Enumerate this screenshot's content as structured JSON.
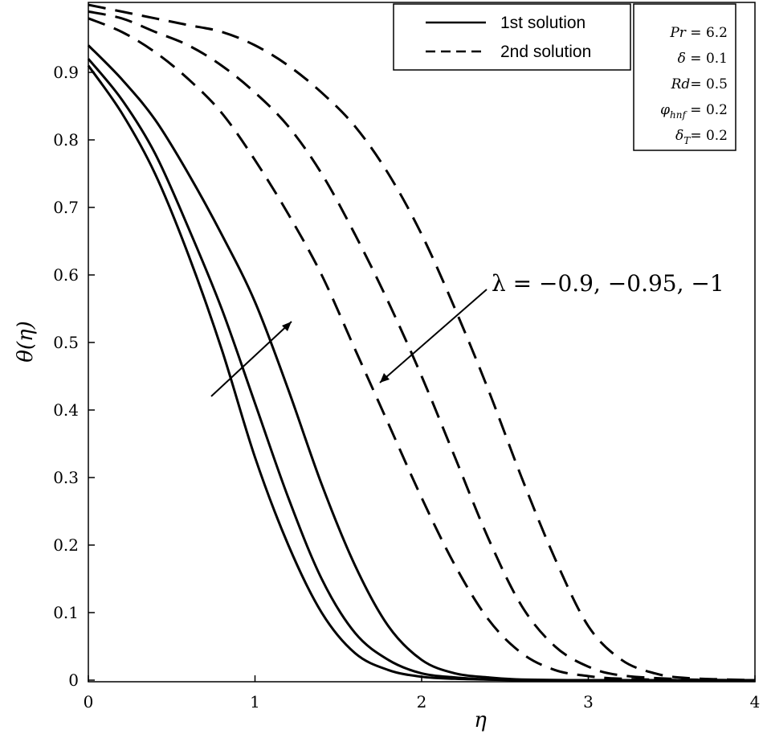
{
  "chart_data": {
    "type": "line",
    "xlabel": "η",
    "ylabel": "θ(η)",
    "xlim": [
      0,
      4
    ],
    "ylim": [
      0,
      1
    ],
    "x_ticks": [
      0,
      1,
      2,
      3,
      4
    ],
    "x_tick_labels": [
      "0",
      "1",
      "2",
      "3",
      "4"
    ],
    "y_ticks": [
      0,
      0.1,
      0.2,
      0.3,
      0.4,
      0.5,
      0.6,
      0.7,
      0.8,
      0.9
    ],
    "y_tick_labels": [
      "0",
      "0.1",
      "0.2",
      "0.3",
      "0.4",
      "0.5",
      "0.6",
      "0.7",
      "0.8",
      "0.9"
    ],
    "legend": [
      {
        "label": "1st solution",
        "style": "solid"
      },
      {
        "label": "2nd solution",
        "style": "dashed"
      }
    ],
    "parameters": [
      {
        "symbol": "Pr",
        "sep": " = ",
        "value": "6.2"
      },
      {
        "symbol": "δ",
        "sep": " = ",
        "value": "0.1"
      },
      {
        "symbol": "Rd",
        "sep": "= ",
        "value": "0.5"
      },
      {
        "symbol": "φ",
        "sub": "hnf",
        "sep": " = ",
        "value": "0.2"
      },
      {
        "symbol": "δ",
        "sub": "T",
        "sep": "= ",
        "value": "0.2"
      }
    ],
    "annotation": "λ = −0.9, −0.95, −1",
    "series": [
      {
        "name": "1st solution, λ = −0.9",
        "style": "solid",
        "x": [
          0,
          0.2,
          0.4,
          0.6,
          0.8,
          1.0,
          1.2,
          1.4,
          1.6,
          1.8,
          2.0,
          2.2,
          2.4,
          2.6,
          3.0,
          4.0
        ],
        "y": [
          0.91,
          0.84,
          0.75,
          0.63,
          0.49,
          0.33,
          0.2,
          0.1,
          0.04,
          0.015,
          0.005,
          0.002,
          0.001,
          0,
          0,
          0
        ]
      },
      {
        "name": "1st solution, λ = −0.95",
        "style": "solid",
        "x": [
          0,
          0.2,
          0.4,
          0.6,
          0.8,
          1.0,
          1.2,
          1.4,
          1.6,
          1.8,
          2.0,
          2.2,
          2.4,
          2.6,
          3.0,
          4.0
        ],
        "y": [
          0.92,
          0.86,
          0.78,
          0.67,
          0.55,
          0.41,
          0.27,
          0.15,
          0.07,
          0.03,
          0.01,
          0.004,
          0.001,
          0,
          0,
          0
        ]
      },
      {
        "name": "1st solution, λ = −1",
        "style": "solid",
        "x": [
          0,
          0.2,
          0.4,
          0.6,
          0.8,
          1.0,
          1.2,
          1.4,
          1.6,
          1.8,
          2.0,
          2.2,
          2.4,
          2.6,
          3.0,
          4.0
        ],
        "y": [
          0.94,
          0.89,
          0.83,
          0.75,
          0.66,
          0.56,
          0.43,
          0.29,
          0.17,
          0.08,
          0.03,
          0.01,
          0.004,
          0.001,
          0,
          0
        ]
      },
      {
        "name": "2nd solution, λ = −0.9",
        "style": "dashed",
        "x": [
          0,
          0.2,
          0.4,
          0.6,
          0.8,
          1.0,
          1.2,
          1.4,
          1.6,
          1.8,
          2.0,
          2.2,
          2.4,
          2.6,
          2.8,
          3.0,
          3.2,
          3.6,
          4.0
        ],
        "y": [
          0.98,
          0.96,
          0.93,
          0.89,
          0.84,
          0.77,
          0.69,
          0.6,
          0.49,
          0.38,
          0.27,
          0.17,
          0.09,
          0.04,
          0.015,
          0.006,
          0.002,
          0,
          0
        ]
      },
      {
        "name": "2nd solution, λ = −0.95",
        "style": "dashed",
        "x": [
          0,
          0.2,
          0.4,
          0.6,
          0.8,
          1.0,
          1.2,
          1.4,
          1.6,
          1.8,
          2.0,
          2.2,
          2.4,
          2.6,
          2.8,
          3.0,
          3.2,
          3.6,
          4.0
        ],
        "y": [
          0.99,
          0.98,
          0.96,
          0.94,
          0.91,
          0.87,
          0.82,
          0.75,
          0.66,
          0.56,
          0.45,
          0.33,
          0.21,
          0.11,
          0.05,
          0.02,
          0.007,
          0.001,
          0
        ]
      },
      {
        "name": "2nd solution, λ = −1",
        "style": "dashed",
        "x": [
          0,
          0.2,
          0.4,
          0.6,
          0.8,
          1.0,
          1.2,
          1.4,
          1.6,
          1.8,
          2.0,
          2.2,
          2.4,
          2.6,
          2.8,
          3.0,
          3.2,
          3.4,
          3.6,
          4.0
        ],
        "y": [
          1.0,
          0.99,
          0.98,
          0.97,
          0.96,
          0.94,
          0.91,
          0.87,
          0.82,
          0.75,
          0.66,
          0.55,
          0.43,
          0.3,
          0.18,
          0.08,
          0.03,
          0.01,
          0.003,
          0
        ]
      }
    ]
  }
}
